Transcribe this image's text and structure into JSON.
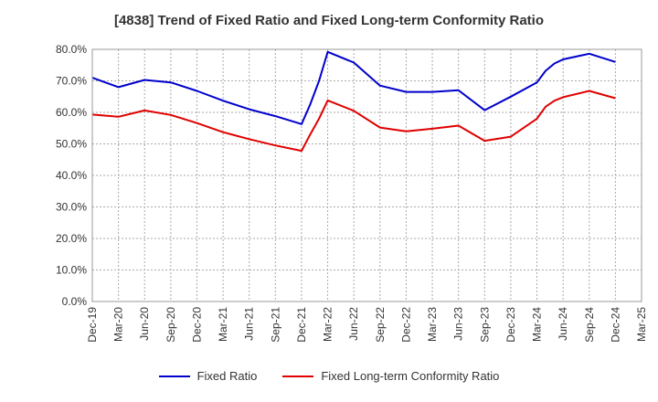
{
  "chart_data": {
    "type": "line",
    "title": "[4838]  Trend of Fixed Ratio and Fixed Long-term Conformity Ratio",
    "xlabel": "",
    "ylabel": "",
    "ylim": [
      0,
      80
    ],
    "y_ticks": [
      "0.0%",
      "10.0%",
      "20.0%",
      "30.0%",
      "40.0%",
      "50.0%",
      "60.0%",
      "70.0%",
      "80.0%"
    ],
    "x_ticks": [
      "Dec-19",
      "Mar-20",
      "Jun-20",
      "Sep-20",
      "Dec-20",
      "Mar-21",
      "Jun-21",
      "Sep-21",
      "Dec-21",
      "Mar-22",
      "Jun-22",
      "Sep-22",
      "Dec-22",
      "Mar-23",
      "Jun-23",
      "Sep-23",
      "Dec-23",
      "Mar-24",
      "Jun-24",
      "Sep-24",
      "Dec-24",
      "Mar-25"
    ],
    "grid": true,
    "legend_position": "bottom",
    "series": [
      {
        "name": "Fixed Ratio",
        "color": "#0000cc",
        "points": [
          [
            0,
            71.0
          ],
          [
            1,
            68.0
          ],
          [
            2,
            70.3
          ],
          [
            3,
            69.5
          ],
          [
            4,
            66.8
          ],
          [
            5,
            63.7
          ],
          [
            6,
            61.0
          ],
          [
            7,
            58.8
          ],
          [
            8,
            56.3
          ],
          [
            8.33,
            62.5
          ],
          [
            8.67,
            70.0
          ],
          [
            9,
            79.2
          ],
          [
            10,
            75.8
          ],
          [
            11,
            68.5
          ],
          [
            12,
            66.5
          ],
          [
            13,
            66.5
          ],
          [
            14,
            67.0
          ],
          [
            15,
            60.7
          ],
          [
            16,
            65.0
          ],
          [
            17,
            69.5
          ],
          [
            17.33,
            73.2
          ],
          [
            17.67,
            75.5
          ],
          [
            18,
            76.8
          ],
          [
            19,
            78.6
          ],
          [
            20,
            76.0
          ]
        ]
      },
      {
        "name": "Fixed Long-term Conformity Ratio",
        "color": "#e00000",
        "points": [
          [
            0,
            59.3
          ],
          [
            1,
            58.6
          ],
          [
            2,
            60.6
          ],
          [
            3,
            59.2
          ],
          [
            4,
            56.6
          ],
          [
            5,
            53.7
          ],
          [
            6,
            51.5
          ],
          [
            7,
            49.5
          ],
          [
            8,
            47.8
          ],
          [
            8.33,
            53.0
          ],
          [
            8.67,
            58.0
          ],
          [
            9,
            63.8
          ],
          [
            10,
            60.5
          ],
          [
            11,
            55.2
          ],
          [
            12,
            54.0
          ],
          [
            13,
            54.8
          ],
          [
            14,
            55.8
          ],
          [
            15,
            51.0
          ],
          [
            16,
            52.3
          ],
          [
            17,
            58.0
          ],
          [
            17.33,
            61.8
          ],
          [
            17.67,
            63.7
          ],
          [
            18,
            64.8
          ],
          [
            19,
            66.8
          ],
          [
            20,
            64.5
          ]
        ]
      }
    ]
  }
}
